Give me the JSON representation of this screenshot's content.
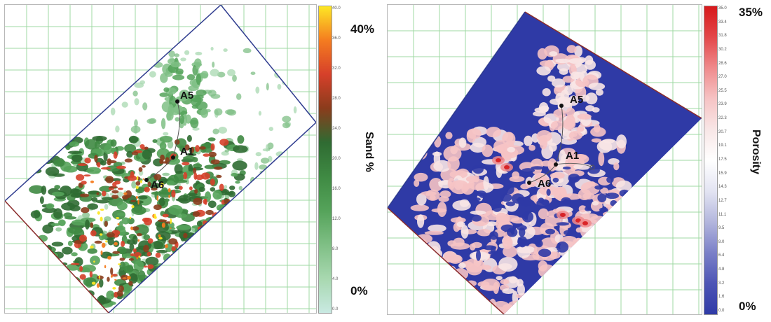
{
  "left_map": {
    "colorbar_title": "Sand %",
    "max_label": "40%",
    "min_label": "0%",
    "ticks": [
      "40.0",
      "36.0",
      "32.0",
      "28.0",
      "24.0",
      "20.0",
      "16.0",
      "12.0",
      "8.0",
      "4.0",
      "0.0"
    ],
    "colors": [
      "#fde725",
      "#f47c20",
      "#d6402a",
      "#8a3c1c",
      "#2f6b32",
      "#3f8a43",
      "#55a35a",
      "#7fbf85",
      "#a8d8b0",
      "#c9e9e2"
    ],
    "wells": [
      {
        "id": "A5",
        "label": "A5"
      },
      {
        "id": "A1",
        "label": "A1"
      },
      {
        "id": "A6",
        "label": "A6"
      }
    ]
  },
  "right_map": {
    "colorbar_title": "Porosity",
    "max_label": "35%",
    "min_label": "0%",
    "ticks": [
      "35.0",
      "33.4",
      "31.8",
      "30.2",
      "28.6",
      "27.0",
      "25.5",
      "23.9",
      "22.3",
      "20.7",
      "19.1",
      "17.5",
      "15.9",
      "14.3",
      "12.7",
      "11.1",
      "9.5",
      "8.0",
      "6.4",
      "4.8",
      "3.2",
      "1.6",
      "0.0"
    ],
    "colors": [
      "#d7191c",
      "#e3474a",
      "#ef8a8c",
      "#f6c3c4",
      "#f8e6e6",
      "#ffffff",
      "#e3e4f2",
      "#b3b6dd",
      "#7b80c8",
      "#4d55b5",
      "#2f3aa6"
    ],
    "wells": [
      {
        "id": "A5",
        "label": "A5"
      },
      {
        "id": "A1",
        "label": "A1"
      },
      {
        "id": "A6",
        "label": "A6"
      }
    ]
  }
}
